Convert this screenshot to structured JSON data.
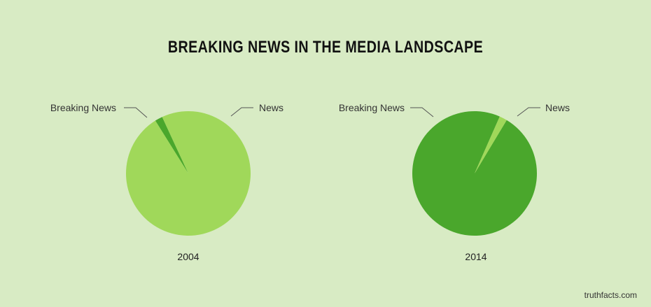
{
  "title": "BREAKING NEWS IN THE MEDIA LANDSCAPE",
  "watermark": "truthfacts.com",
  "colors": {
    "background": "#d8ebc4",
    "news": "#a0d85a",
    "breaking_news": "#4aa72c"
  },
  "chart_data": [
    {
      "type": "pie",
      "title": "2004",
      "labels": [
        "Breaking News",
        "News"
      ],
      "values": [
        2,
        98
      ]
    },
    {
      "type": "pie",
      "title": "2014",
      "labels": [
        "Breaking News",
        "News"
      ],
      "values": [
        98,
        2
      ]
    }
  ]
}
